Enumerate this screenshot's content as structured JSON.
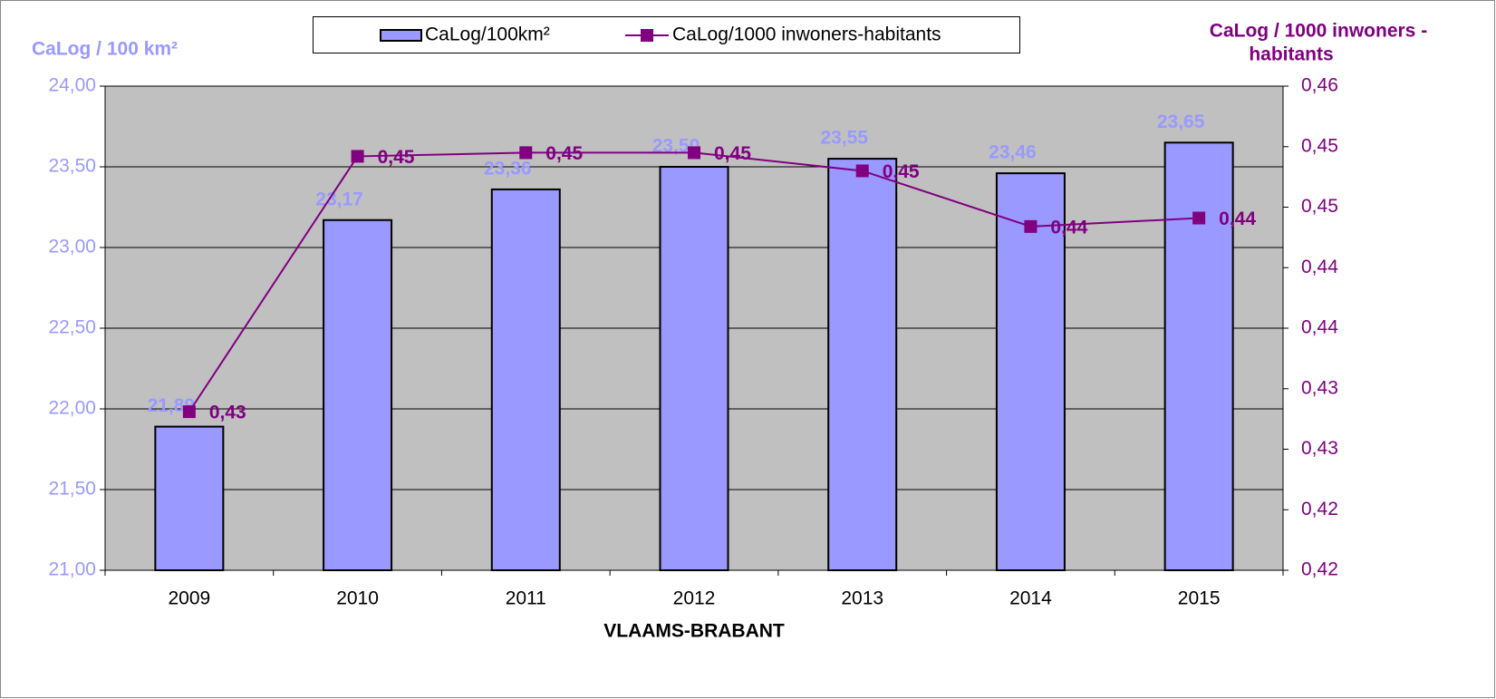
{
  "chart_data": {
    "type": "bar_line",
    "xlabel": "VLAAMS-BRABANT",
    "ylabel": "CaLog / 100 km²",
    "y2label": [
      "CaLog / 1000 inwoners -",
      "habitants"
    ],
    "categories": [
      "2009",
      "2010",
      "2011",
      "2012",
      "2013",
      "2014",
      "2015"
    ],
    "series": [
      {
        "name": "CaLog/100km²",
        "type": "bar",
        "color": "#9999ff",
        "values": [
          21.89,
          23.17,
          23.36,
          23.5,
          23.55,
          23.46,
          23.65
        ],
        "value_labels": [
          "21,89",
          "23,17",
          "23,36",
          "23,50",
          "23,55",
          "23,46",
          "23,65"
        ]
      },
      {
        "name": "CaLog/1000 inwoners-habitants",
        "type": "line",
        "axis": "y2",
        "color": "#800080",
        "values": [
          0.4286,
          0.4497,
          0.45,
          0.45,
          0.4485,
          0.4439,
          0.4446
        ],
        "value_labels": [
          "0,43",
          "0,45",
          "0,45",
          "0,45",
          "0,45",
          "0,44",
          "0,44"
        ]
      }
    ],
    "ylim": [
      21,
      24
    ],
    "yticks": [
      {
        "value": 21,
        "label": "21,00"
      },
      {
        "value": 21.5,
        "label": "21,50"
      },
      {
        "value": 22,
        "label": "22,00"
      },
      {
        "value": 22.5,
        "label": "22,50"
      },
      {
        "value": 23,
        "label": "23,00"
      },
      {
        "value": 23.5,
        "label": "23,50"
      },
      {
        "value": 24,
        "label": "24,00"
      }
    ],
    "y2lim": [
      0.4155,
      0.4555
    ],
    "y2ticks": [
      {
        "value": 0.4155,
        "label": "0,42"
      },
      {
        "value": 0.4205,
        "label": "0,42"
      },
      {
        "value": 0.4255,
        "label": "0,43"
      },
      {
        "value": 0.4305,
        "label": "0,43"
      },
      {
        "value": 0.4355,
        "label": "0,44"
      },
      {
        "value": 0.4405,
        "label": "0,44"
      },
      {
        "value": 0.4455,
        "label": "0,45"
      },
      {
        "value": 0.4505,
        "label": "0,45"
      },
      {
        "value": 0.4555,
        "label": "0,46"
      }
    ],
    "grid": true,
    "legend": "top",
    "plot_background": "#c0c0c0"
  }
}
